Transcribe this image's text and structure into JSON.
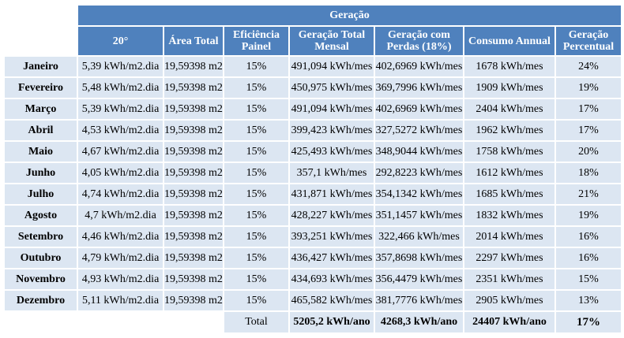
{
  "table": {
    "group_header": "Geração",
    "columns": [
      [
        "20°"
      ],
      [
        "Área Total"
      ],
      [
        "Eficiência",
        "Painel"
      ],
      [
        "Geração Total",
        "Mensal"
      ],
      [
        "Geração com",
        "Perdas (18%)"
      ],
      [
        "Consumo Annual"
      ],
      [
        "Geração",
        "Percentual"
      ]
    ],
    "rows": [
      {
        "month": "Janeiro",
        "cells": [
          "5,39 kWh/m2.dia",
          "19,59398 m2",
          "15%",
          "491,094 kWh/mes",
          "402,6969 kWh/mes",
          "1678 kWh/mes",
          "24%"
        ]
      },
      {
        "month": "Fevereiro",
        "cells": [
          "5,48 kWh/m2.dia",
          "19,59398 m2",
          "15%",
          "450,975 kWh/mes",
          "369,7996 kWh/mes",
          "1909 kWh/mes",
          "19%"
        ]
      },
      {
        "month": "Março",
        "cells": [
          "5,39 kWh/m2.dia",
          "19,59398 m2",
          "15%",
          "491,094 kWh/mes",
          "402,6969 kWh/mes",
          "2404 kWh/mes",
          "17%"
        ]
      },
      {
        "month": "Abril",
        "cells": [
          "4,53 kWh/m2.dia",
          "19,59398 m2",
          "15%",
          "399,423 kWh/mes",
          "327,5272 kWh/mes",
          "1962 kWh/mes",
          "17%"
        ]
      },
      {
        "month": "Maio",
        "cells": [
          "4,67 kWh/m2.dia",
          "19,59398 m2",
          "15%",
          "425,493 kWh/mes",
          "348,9044 kWh/mes",
          "1758 kWh/mes",
          "20%"
        ]
      },
      {
        "month": "Junho",
        "cells": [
          "4,05 kWh/m2.dia",
          "19,59398 m2",
          "15%",
          "357,1 kWh/mes",
          "292,8223 kWh/mes",
          "1612 kWh/mes",
          "18%"
        ]
      },
      {
        "month": "Julho",
        "cells": [
          "4,74 kWh/m2.dia",
          "19,59398 m2",
          "15%",
          "431,871 kWh/mes",
          "354,1342 kWh/mes",
          "1685 kWh/mes",
          "21%"
        ]
      },
      {
        "month": "Agosto",
        "cells": [
          "4,7 kWh/m2.dia",
          "19,59398 m2",
          "15%",
          "428,227 kWh/mes",
          "351,1457 kWh/mes",
          "1832 kWh/mes",
          "19%"
        ]
      },
      {
        "month": "Setembro",
        "cells": [
          "4,46 kWh/m2.dia",
          "19,59398 m2",
          "15%",
          "393,251 kWh/mes",
          "322,466 kWh/mes",
          "2014 kWh/mes",
          "16%"
        ]
      },
      {
        "month": "Outubro",
        "cells": [
          "4,79 kWh/m2.dia",
          "19,59398 m2",
          "15%",
          "436,427 kWh/mes",
          "357,8698 kWh/mes",
          "2297 kWh/mes",
          "16%"
        ]
      },
      {
        "month": "Novembro",
        "cells": [
          "4,93 kWh/m2.dia",
          "19,59398 m2",
          "15%",
          "434,693 kWh/mes",
          "356,4479 kWh/mes",
          "2351 kWh/mes",
          "15%"
        ]
      },
      {
        "month": "Dezembro",
        "cells": [
          "5,11 kWh/m2.dia",
          "19,59398 m2",
          "15%",
          "465,582 kWh/mes",
          "381,7776 kWh/mes",
          "2905 kWh/mes",
          "13%"
        ]
      }
    ],
    "total": {
      "label": "Total",
      "geracao_total": "5205,2 kWh/ano",
      "perdas": "4268,3 kWh/ano",
      "consumo": "24407 kWh/ano",
      "percentual": "17%"
    },
    "colors": {
      "header_bg": "#4f81bd",
      "header_text": "#ffffff",
      "cell_bg": "#dce6f2"
    }
  }
}
